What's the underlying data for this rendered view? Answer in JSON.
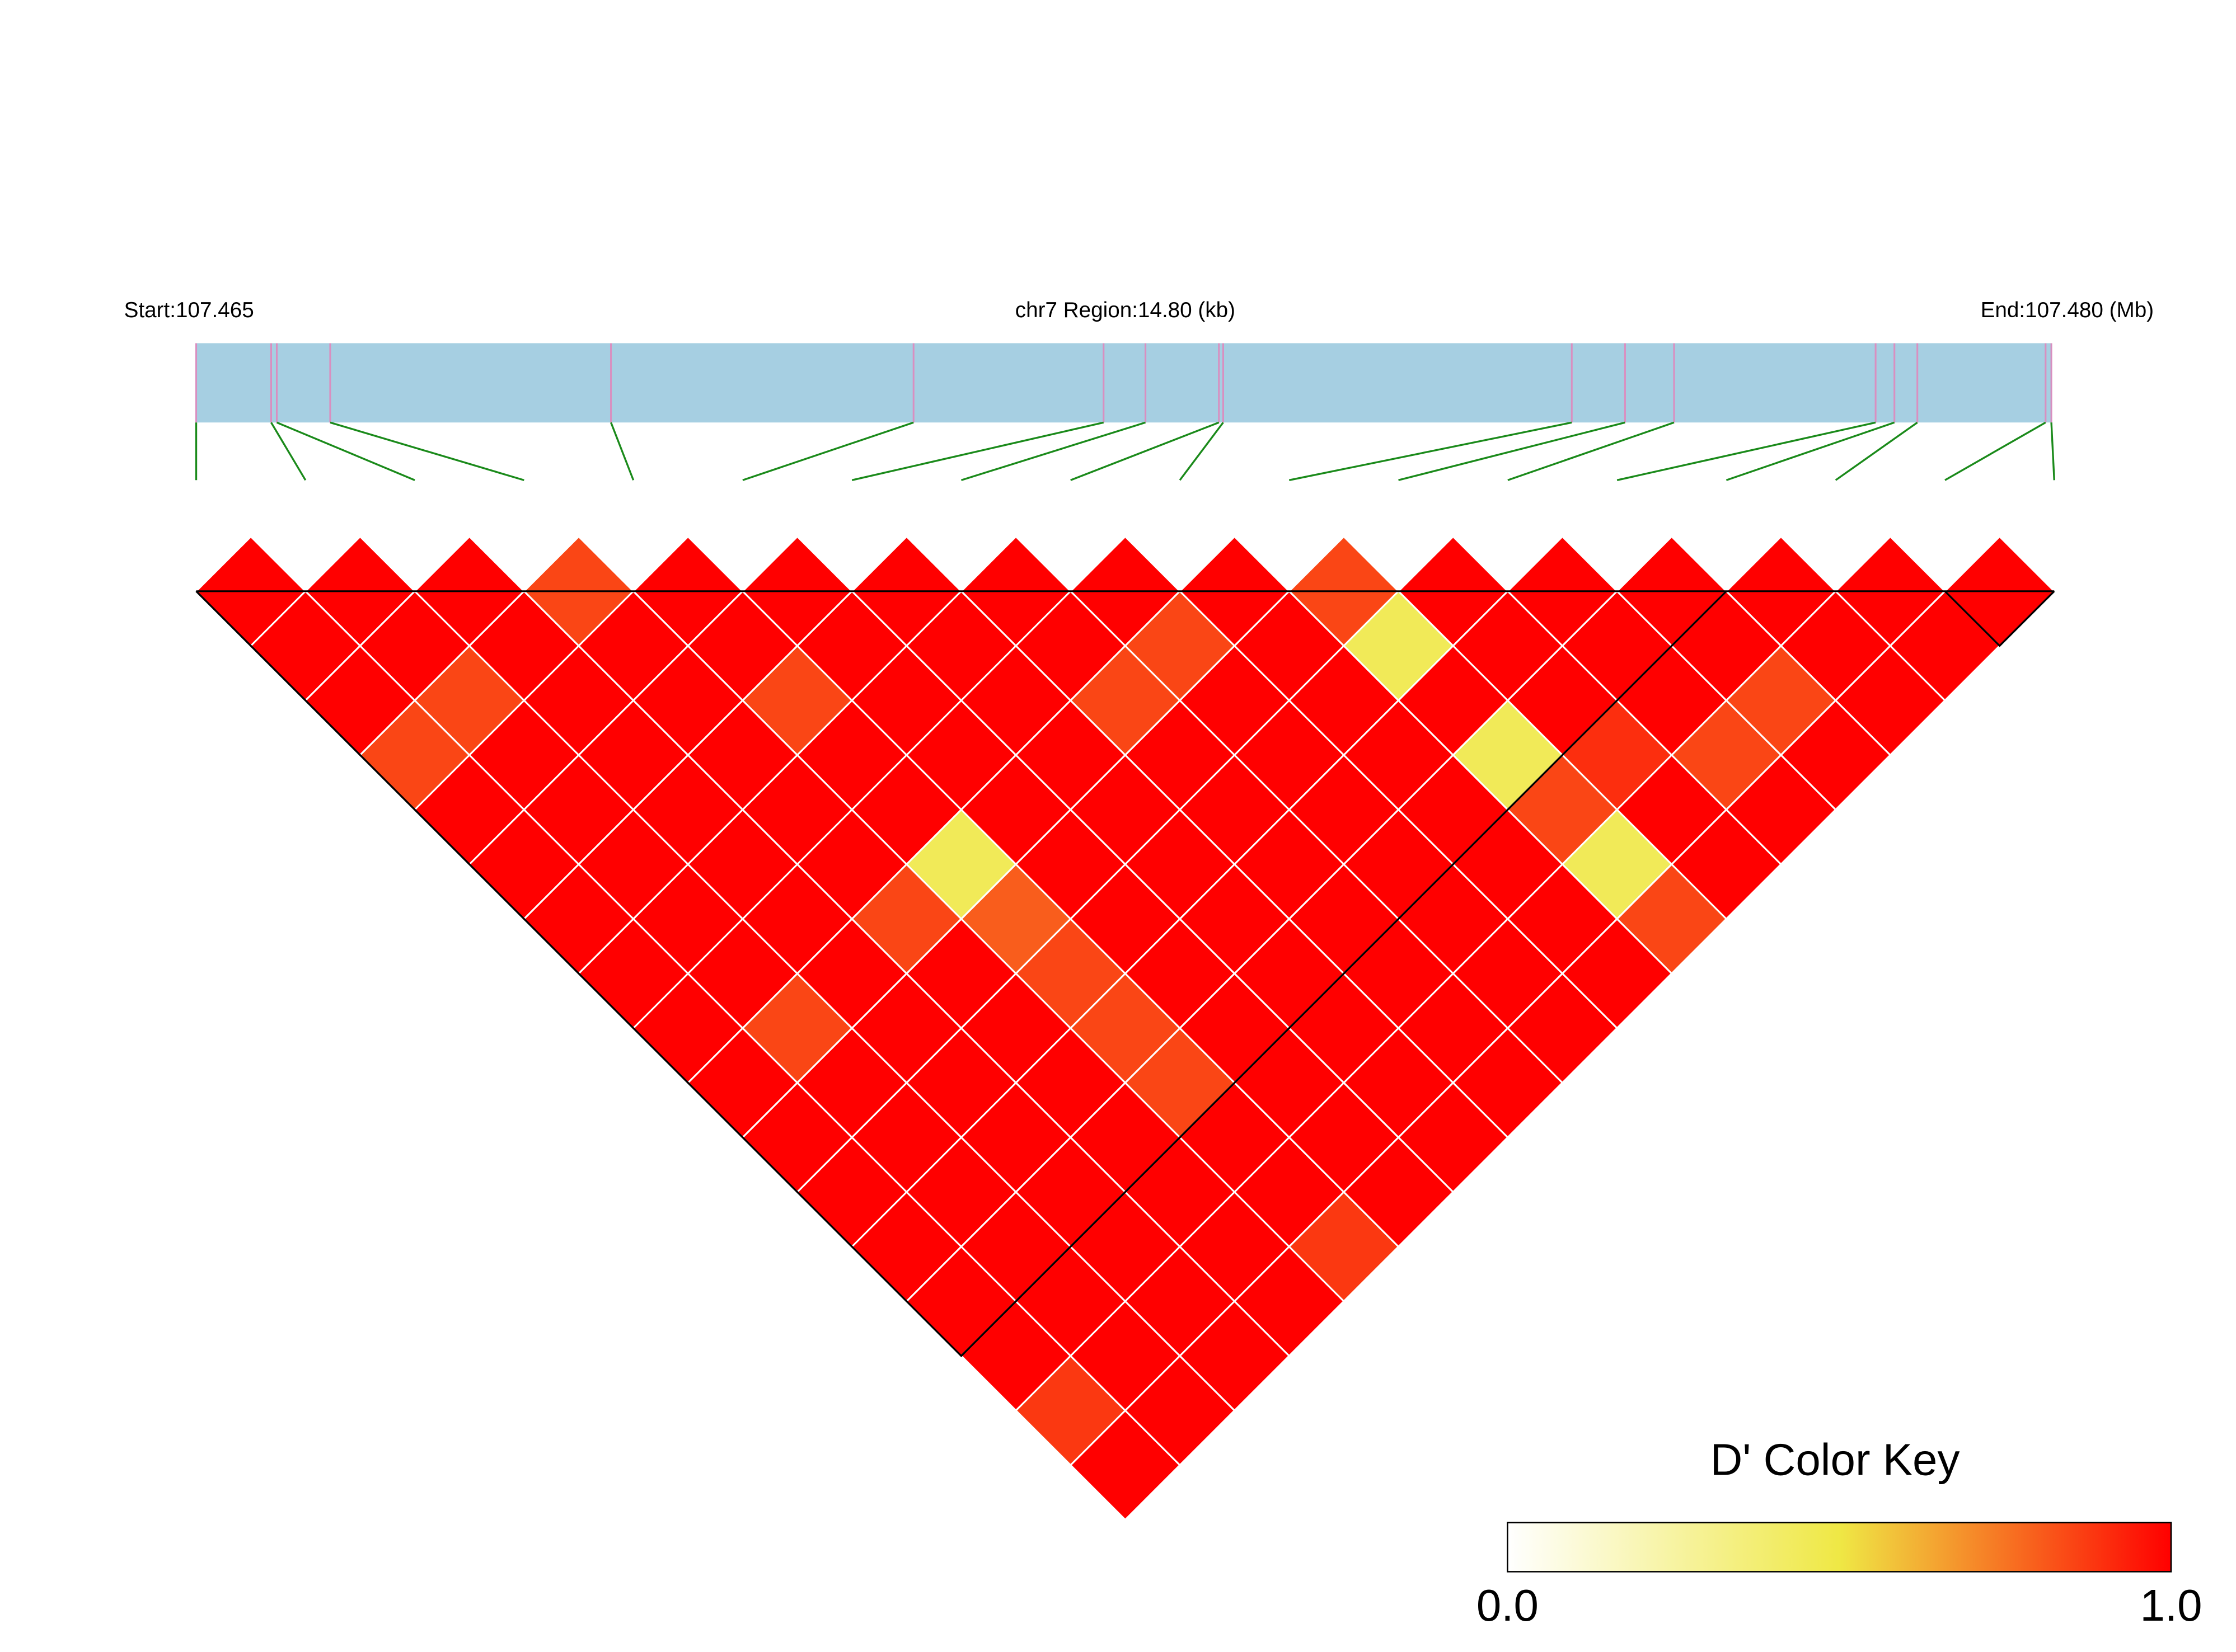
{
  "chart_data": {
    "type": "ld-heatmap",
    "start_label": "Start:107.465",
    "region_label": "chr7 Region:14.80 (kb)",
    "end_label": "End:107.480 (Mb)",
    "snp_positions": [
      107.465,
      107.465598,
      107.465643,
      107.466069,
      107.468309,
      107.470723,
      107.472239,
      107.472573,
      107.473159,
      107.473193,
      107.475974,
      107.476399,
      107.47679,
      107.478398,
      107.478548,
      107.478731,
      107.479754,
      107.4798
    ],
    "xlim": [
      107.465,
      107.4798
    ],
    "dprime": [
      [
        1,
        1,
        1,
        0.85,
        1,
        1,
        1,
        1,
        1,
        1,
        1,
        1,
        1,
        1,
        1,
        0.88,
        1
      ],
      [
        1,
        1,
        0.85,
        1,
        1,
        1,
        1,
        1,
        0.85,
        1,
        1,
        1,
        1,
        1,
        1,
        1
      ],
      [
        1,
        1,
        1,
        1,
        1,
        1,
        1,
        1,
        1,
        1,
        1,
        1,
        1,
        1,
        1
      ],
      [
        0.85,
        1,
        1,
        1,
        1,
        1,
        0.85,
        1,
        1,
        1,
        1,
        1,
        1,
        1
      ],
      [
        1,
        1,
        0.85,
        1,
        1,
        0.45,
        0.8,
        0.85,
        0.85,
        0.85,
        1,
        1,
        0.88
      ],
      [
        1,
        1,
        1,
        1,
        1,
        1,
        1,
        1,
        1,
        1,
        1,
        1
      ],
      [
        1,
        1,
        1,
        1,
        1,
        1,
        1,
        1,
        1,
        1,
        1
      ],
      [
        1,
        1,
        0.85,
        1,
        1,
        1,
        1,
        1,
        1,
        1
      ],
      [
        1,
        0.85,
        1,
        1,
        1,
        1,
        1,
        1,
        1
      ],
      [
        1,
        1,
        1,
        1,
        1,
        1,
        1,
        1
      ],
      [
        0.85,
        0.45,
        1,
        0.45,
        0.85,
        0.45,
        0.85
      ],
      [
        1,
        1,
        1,
        0.9,
        1,
        1
      ],
      [
        1,
        1,
        1,
        0.85,
        1
      ],
      [
        1,
        1,
        0.85,
        1
      ],
      [
        1,
        1,
        1
      ],
      [
        1,
        1
      ],
      [
        1
      ]
    ],
    "blocks": [
      [
        0,
        14
      ],
      [
        16,
        17
      ]
    ],
    "key_title": "D' Color Key",
    "key_lim": [
      0,
      1
    ],
    "key_ticks": [
      {
        "value": 0,
        "label": "0.0"
      },
      {
        "value": 1,
        "label": "1.0"
      }
    ],
    "colors": [
      "#ffffff",
      "#efe845",
      "#ff0000"
    ],
    "gene_bar_color": "#a6cfe2",
    "marker_color": "#d98fc0",
    "connector_color": "#1a8a1a"
  }
}
